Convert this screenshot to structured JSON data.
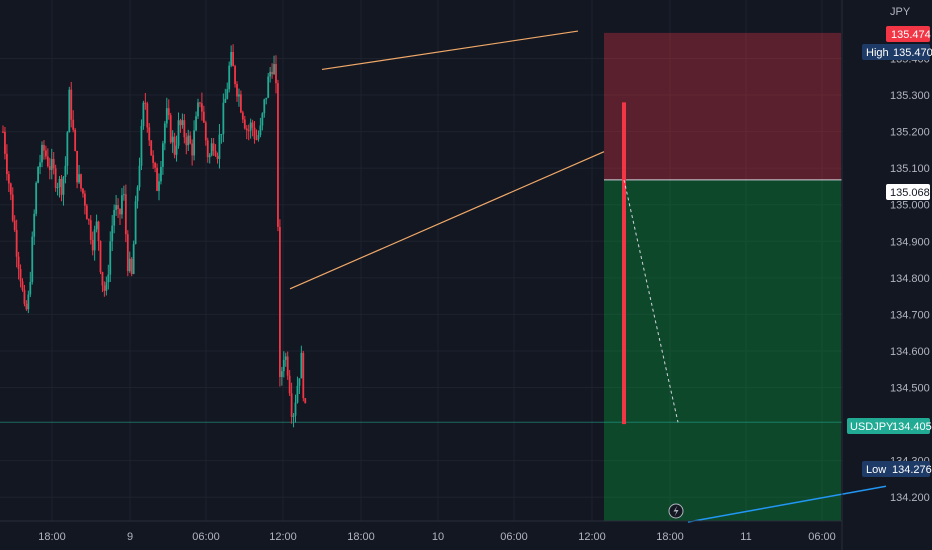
{
  "chart_data": {
    "type": "candlestick",
    "symbol": "USDJPY",
    "currency": "JPY",
    "ylim": [
      134.135,
      135.56
    ],
    "y_ticks": [
      "135.400",
      "135.300",
      "135.200",
      "135.100",
      "135.000",
      "134.900",
      "134.800",
      "134.700",
      "134.600",
      "134.500",
      "134.300",
      "134.200"
    ],
    "x_ticks": [
      "18:00",
      "9",
      "06:00",
      "12:00",
      "18:00",
      "10",
      "06:00",
      "12:00",
      "18:00",
      "11",
      "06:00"
    ],
    "last_price": "134.405",
    "high": {
      "label": "High",
      "value": "135.470"
    },
    "high_alert": "135.474",
    "low": {
      "label": "Low",
      "value": "134.276"
    },
    "stop_level": "135.068",
    "entry_level": 135.068,
    "stop_loss": 135.47,
    "target": 134.135,
    "pattern": "rising-wedge",
    "wedge_upper": [
      [
        134.7,
        135.37
      ],
      [
        135.31,
        135.475
      ]
    ],
    "wedge_lower": [
      [
        134.7,
        134.77
      ],
      [
        135.31,
        135.145
      ]
    ],
    "price_path": [
      [
        0,
        135.2
      ],
      [
        1.5,
        135.05
      ],
      [
        3,
        134.9
      ],
      [
        4.2,
        134.8
      ],
      [
        5,
        134.7
      ],
      [
        5.8,
        134.72
      ],
      [
        7,
        134.92
      ],
      [
        8,
        135.1
      ],
      [
        9.5,
        135.15
      ],
      [
        10.5,
        135.12
      ],
      [
        12,
        135.08
      ],
      [
        13.5,
        135.05
      ],
      [
        14.5,
        135.1
      ],
      [
        15.5,
        135.3
      ],
      [
        16.2,
        135.22
      ],
      [
        17,
        135.1
      ],
      [
        18,
        135.05
      ],
      [
        19,
        135.02
      ],
      [
        20,
        134.95
      ],
      [
        21,
        134.9
      ],
      [
        22,
        134.95
      ],
      [
        23,
        134.8
      ],
      [
        24,
        134.75
      ],
      [
        25,
        134.9
      ],
      [
        26,
        135.0
      ],
      [
        27,
        134.95
      ],
      [
        28,
        135.05
      ],
      [
        29,
        134.85
      ],
      [
        30,
        134.8
      ],
      [
        31,
        135.0
      ],
      [
        32,
        135.15
      ],
      [
        33,
        135.3
      ],
      [
        34,
        135.2
      ],
      [
        35,
        135.1
      ],
      [
        36,
        135.05
      ],
      [
        37,
        135.15
      ],
      [
        38,
        135.25
      ],
      [
        39,
        135.2
      ],
      [
        40,
        135.15
      ],
      [
        41,
        135.22
      ],
      [
        42,
        135.2
      ],
      [
        43,
        135.18
      ],
      [
        44,
        135.15
      ],
      [
        45,
        135.22
      ],
      [
        46,
        135.3
      ],
      [
        47,
        135.2
      ],
      [
        48,
        135.12
      ],
      [
        49,
        135.18
      ],
      [
        50,
        135.15
      ],
      [
        51,
        135.22
      ],
      [
        52,
        135.3
      ],
      [
        53,
        135.4
      ],
      [
        54,
        135.35
      ],
      [
        55,
        135.3
      ],
      [
        56,
        135.25
      ],
      [
        57,
        135.2
      ],
      [
        58,
        135.22
      ],
      [
        59,
        135.18
      ],
      [
        60,
        135.2
      ],
      [
        61,
        135.28
      ],
      [
        62,
        135.35
      ],
      [
        63,
        135.4
      ],
      [
        63.8,
        135.28
      ],
      [
        64.5,
        134.5
      ],
      [
        65.5,
        134.6
      ],
      [
        66.5,
        134.55
      ],
      [
        67.5,
        134.42
      ],
      [
        68.5,
        134.5
      ],
      [
        69.5,
        134.58
      ],
      [
        70.5,
        134.42
      ],
      [
        71,
        134.4
      ]
    ]
  }
}
